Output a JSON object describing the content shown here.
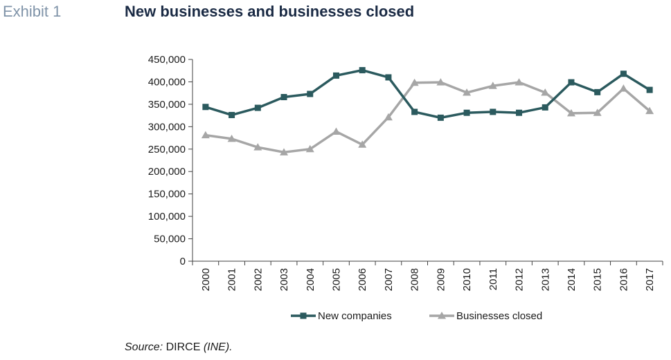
{
  "header": {
    "exhibit_label": "Exhibit 1",
    "title": "New businesses and businesses closed"
  },
  "source": {
    "prefix": "Source:",
    "name": " DIRCE ",
    "org": "(INE)."
  },
  "colors": {
    "new_companies": "#2b5a5e",
    "businesses_closed": "#a6a6a6",
    "axis": "#404040"
  },
  "chart_data": {
    "type": "line",
    "title": "New businesses and businesses closed",
    "xlabel": "",
    "ylabel": "",
    "ylim": [
      0,
      450000
    ],
    "y_ticks": [
      0,
      50000,
      100000,
      150000,
      200000,
      250000,
      300000,
      350000,
      400000,
      450000
    ],
    "y_tick_labels": [
      "0",
      "50,000",
      "100,000",
      "150,000",
      "200,000",
      "250,000",
      "300,000",
      "350,000",
      "400,000",
      "450,000"
    ],
    "categories": [
      "2000",
      "2001",
      "2002",
      "2003",
      "2004",
      "2005",
      "2006",
      "2007",
      "2008",
      "2009",
      "2010",
      "2011",
      "2012",
      "2013",
      "2014",
      "2015",
      "2016",
      "2017"
    ],
    "grid": false,
    "legend_position": "bottom",
    "series": [
      {
        "name": "New companies",
        "marker": "square",
        "values": [
          344000,
          326000,
          342000,
          366000,
          373000,
          414000,
          426000,
          410000,
          333000,
          320000,
          331000,
          333000,
          331000,
          343000,
          399000,
          377000,
          418000,
          382000
        ]
      },
      {
        "name": "Businesses closed",
        "marker": "triangle",
        "values": [
          281000,
          273000,
          254000,
          243000,
          250000,
          289000,
          260000,
          321000,
          398000,
          399000,
          376000,
          391000,
          399000,
          376000,
          330000,
          331000,
          385000,
          335000
        ]
      }
    ]
  }
}
